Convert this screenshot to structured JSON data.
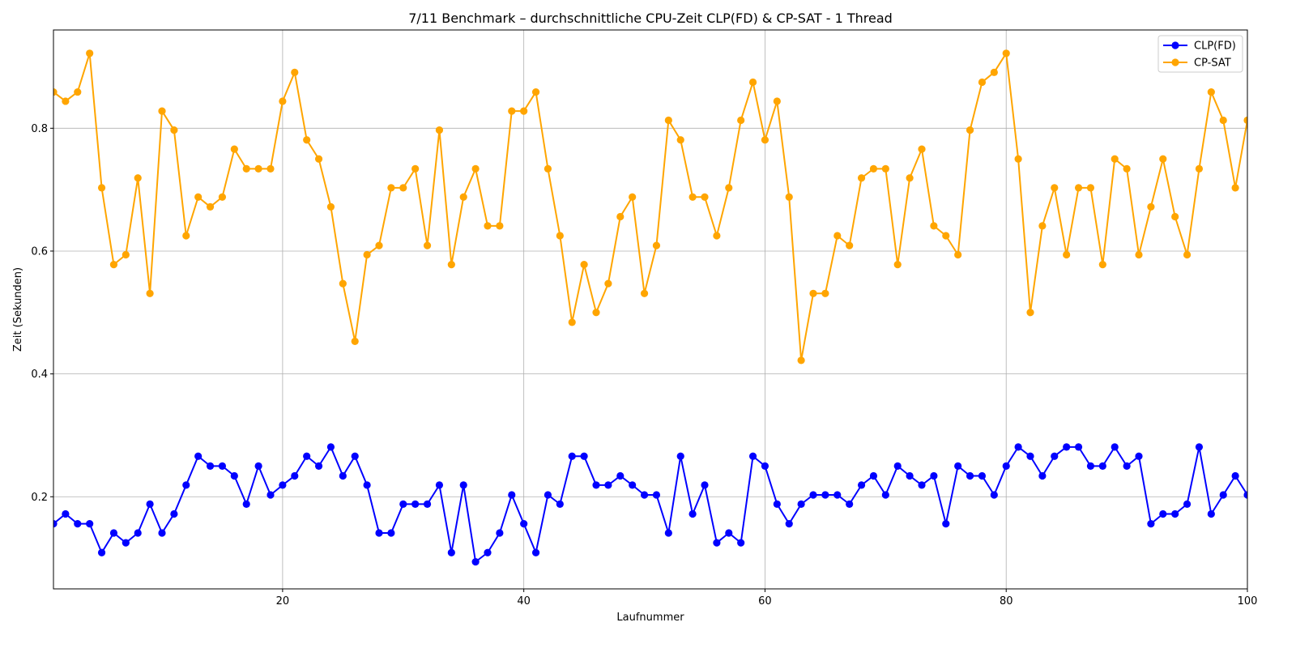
{
  "chart_data": {
    "type": "line",
    "title": "7/11 Benchmark – durchschnittliche CPU-Zeit CLP(FD) & CP-SAT - 1 Thread",
    "xlabel": "Laufnummer",
    "ylabel": "Zeit (Sekunden)",
    "xlim": [
      1,
      100
    ],
    "ylim": [
      0.05,
      0.96
    ],
    "xticks": [
      20,
      40,
      60,
      80,
      100
    ],
    "yticks": [
      0.2,
      0.4,
      0.6,
      0.8
    ],
    "xtick_labels": [
      "20",
      "40",
      "60",
      "80",
      "100"
    ],
    "ytick_labels": [
      "0.2",
      "0.4",
      "0.6",
      "0.8"
    ],
    "grid": true,
    "legend_position": "top-right",
    "x": [
      1,
      2,
      3,
      4,
      5,
      6,
      7,
      8,
      9,
      10,
      11,
      12,
      13,
      14,
      15,
      16,
      17,
      18,
      19,
      20,
      21,
      22,
      23,
      24,
      25,
      26,
      27,
      28,
      29,
      30,
      31,
      32,
      33,
      34,
      35,
      36,
      37,
      38,
      39,
      40,
      41,
      42,
      43,
      44,
      45,
      46,
      47,
      48,
      49,
      50,
      51,
      52,
      53,
      54,
      55,
      56,
      57,
      58,
      59,
      60,
      61,
      62,
      63,
      64,
      65,
      66,
      67,
      68,
      69,
      70,
      71,
      72,
      73,
      74,
      75,
      76,
      77,
      78,
      79,
      80,
      81,
      82,
      83,
      84,
      85,
      86,
      87,
      88,
      89,
      90,
      91,
      92,
      93,
      94,
      95,
      96,
      97,
      98,
      99,
      100
    ],
    "series": [
      {
        "name": "CLP(FD)",
        "color": "#0000ff",
        "values": [
          0.156,
          0.172,
          0.156,
          0.156,
          0.109,
          0.141,
          0.125,
          0.141,
          0.188,
          0.141,
          0.172,
          0.219,
          0.266,
          0.25,
          0.25,
          0.234,
          0.188,
          0.25,
          0.203,
          0.219,
          0.234,
          0.266,
          0.25,
          0.281,
          0.234,
          0.266,
          0.219,
          0.141,
          0.141,
          0.188,
          0.188,
          0.188,
          0.219,
          0.109,
          0.219,
          0.094,
          0.109,
          0.141,
          0.203,
          0.156,
          0.109,
          0.203,
          0.188,
          0.266,
          0.266,
          0.219,
          0.219,
          0.234,
          0.219,
          0.203,
          0.203,
          0.141,
          0.266,
          0.172,
          0.219,
          0.125,
          0.141,
          0.125,
          0.266,
          0.25,
          0.188,
          0.156,
          0.188,
          0.203,
          0.203,
          0.203,
          0.188,
          0.219,
          0.234,
          0.203,
          0.25,
          0.234,
          0.219,
          0.234,
          0.156,
          0.25,
          0.234,
          0.234,
          0.203,
          0.25,
          0.281,
          0.266,
          0.234,
          0.266,
          0.281,
          0.281,
          0.25,
          0.25,
          0.281,
          0.25,
          0.266,
          0.156,
          0.172,
          0.172,
          0.188,
          0.281,
          0.172,
          0.203,
          0.234,
          0.203
        ]
      },
      {
        "name": "CP-SAT",
        "color": "#ffa500",
        "values": [
          0.859,
          0.844,
          0.859,
          0.922,
          0.703,
          0.578,
          0.594,
          0.719,
          0.531,
          0.828,
          0.797,
          0.625,
          0.688,
          0.672,
          0.688,
          0.766,
          0.734,
          0.734,
          0.734,
          0.844,
          0.891,
          0.781,
          0.75,
          0.672,
          0.547,
          0.453,
          0.594,
          0.609,
          0.703,
          0.703,
          0.734,
          0.609,
          0.797,
          0.578,
          0.688,
          0.734,
          0.641,
          0.641,
          0.828,
          0.828,
          0.859,
          0.734,
          0.625,
          0.484,
          0.578,
          0.5,
          0.547,
          0.656,
          0.688,
          0.531,
          0.609,
          0.813,
          0.781,
          0.688,
          0.688,
          0.625,
          0.703,
          0.813,
          0.875,
          0.781,
          0.844,
          0.688,
          0.422,
          0.531,
          0.531,
          0.625,
          0.609,
          0.719,
          0.734,
          0.734,
          0.578,
          0.719,
          0.766,
          0.641,
          0.625,
          0.594,
          0.797,
          0.875,
          0.891,
          0.922,
          0.75,
          0.5,
          0.641,
          0.703,
          0.594,
          0.703,
          0.703,
          0.578,
          0.75,
          0.734,
          0.594,
          0.672,
          0.75,
          0.656,
          0.594,
          0.734,
          0.859,
          0.813,
          0.703,
          0.813
        ]
      }
    ]
  }
}
